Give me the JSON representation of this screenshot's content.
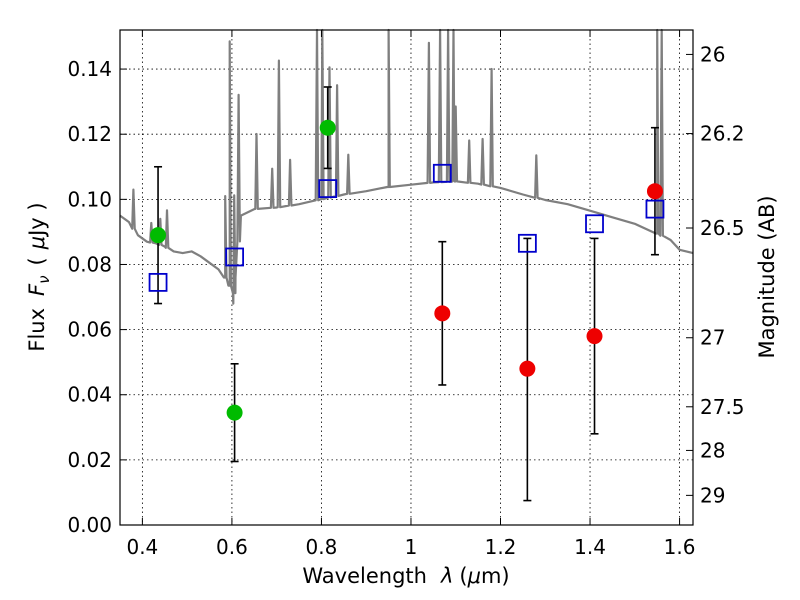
{
  "chart_data": {
    "type": "scatter",
    "xlabel_text": "Wavelength",
    "xlabel_symbol": "λ",
    "xlabel_unit_open": "(",
    "xlabel_unit_mu": "μ",
    "xlabel_unit_rest": "m)",
    "ylabel_text": "Flux",
    "ylabel_symbol": "F",
    "ylabel_sub": "ν",
    "ylabel_unit_open": "(",
    "ylabel_unit_mu": "μ",
    "ylabel_unit_rest": "Jy )",
    "ylabel_right": "Magnitude (AB)",
    "xlim": [
      0.35,
      1.63
    ],
    "ylim": [
      0.0,
      0.152
    ],
    "grid": true,
    "x_ticks": [
      {
        "value": 0.4,
        "label": "0.4"
      },
      {
        "value": 0.6,
        "label": "0.6"
      },
      {
        "value": 0.8,
        "label": "0.8"
      },
      {
        "value": 1.0,
        "label": "1"
      },
      {
        "value": 1.2,
        "label": "1.2"
      },
      {
        "value": 1.4,
        "label": "1.4"
      },
      {
        "value": 1.6,
        "label": "1.6"
      }
    ],
    "y_ticks": [
      {
        "value": 0.0,
        "label": "0.00"
      },
      {
        "value": 0.02,
        "label": "0.02"
      },
      {
        "value": 0.04,
        "label": "0.04"
      },
      {
        "value": 0.06,
        "label": "0.06"
      },
      {
        "value": 0.08,
        "label": "0.08"
      },
      {
        "value": 0.1,
        "label": "0.10"
      },
      {
        "value": 0.12,
        "label": "0.12"
      },
      {
        "value": 0.14,
        "label": "0.14"
      }
    ],
    "right_ticks": [
      {
        "flux": 0.1445,
        "label": "26"
      },
      {
        "flux": 0.1202,
        "label": "26.2"
      },
      {
        "flux": 0.0912,
        "label": "26.5"
      },
      {
        "flux": 0.0575,
        "label": "27"
      },
      {
        "flux": 0.0363,
        "label": "27.5"
      },
      {
        "flux": 0.0229,
        "label": "28"
      },
      {
        "flux": 0.0091,
        "label": "29"
      }
    ],
    "colors": {
      "green": "#00bb00",
      "red": "#ee0000",
      "model": "#7f7f7f",
      "square": "#0000cc",
      "errorbar": "#000000"
    },
    "series": [
      {
        "marker": "circle",
        "color": "green",
        "points": [
          {
            "x": 0.435,
            "y": 0.089,
            "lo": 0.068,
            "hi": 0.11
          },
          {
            "x": 0.606,
            "y": 0.0345,
            "lo": 0.0195,
            "hi": 0.0495
          },
          {
            "x": 0.814,
            "y": 0.122,
            "lo": 0.1095,
            "hi": 0.1345
          }
        ]
      },
      {
        "marker": "circle",
        "color": "red",
        "points": [
          {
            "x": 1.07,
            "y": 0.065,
            "lo": 0.043,
            "hi": 0.087
          },
          {
            "x": 1.26,
            "y": 0.048,
            "lo": 0.0075,
            "hi": 0.088
          },
          {
            "x": 1.41,
            "y": 0.058,
            "lo": 0.028,
            "hi": 0.088
          },
          {
            "x": 1.545,
            "y": 0.1025,
            "lo": 0.083,
            "hi": 0.122
          }
        ]
      },
      {
        "marker": "open-square",
        "color": "square",
        "points": [
          {
            "x": 0.435,
            "y": 0.0745
          },
          {
            "x": 0.606,
            "y": 0.0823
          },
          {
            "x": 0.814,
            "y": 0.1033
          },
          {
            "x": 1.07,
            "y": 0.108
          },
          {
            "x": 1.26,
            "y": 0.0865
          },
          {
            "x": 1.41,
            "y": 0.0925
          },
          {
            "x": 1.545,
            "y": 0.097
          }
        ]
      }
    ],
    "model_spectrum": {
      "color": "model",
      "continuum": [
        [
          0.35,
          0.095
        ],
        [
          0.37,
          0.093
        ],
        [
          0.39,
          0.089
        ],
        [
          0.41,
          0.087
        ],
        [
          0.43,
          0.0865
        ],
        [
          0.45,
          0.0855
        ],
        [
          0.47,
          0.084
        ],
        [
          0.49,
          0.0835
        ],
        [
          0.51,
          0.084
        ],
        [
          0.53,
          0.0825
        ],
        [
          0.55,
          0.0805
        ],
        [
          0.57,
          0.0785
        ],
        [
          0.585,
          0.076
        ],
        [
          0.595,
          0.0735
        ],
        [
          0.603,
          0.068
        ],
        [
          0.608,
          0.076
        ],
        [
          0.62,
          0.095
        ],
        [
          0.65,
          0.097
        ],
        [
          0.7,
          0.0975
        ],
        [
          0.75,
          0.0985
        ],
        [
          0.8,
          0.1
        ],
        [
          0.85,
          0.1015
        ],
        [
          0.9,
          0.1025
        ],
        [
          0.95,
          0.1038
        ],
        [
          1.0,
          0.1045
        ],
        [
          1.05,
          0.1052
        ],
        [
          1.1,
          0.1055
        ],
        [
          1.15,
          0.1048
        ],
        [
          1.2,
          0.1035
        ],
        [
          1.25,
          0.1015
        ],
        [
          1.3,
          0.0998
        ],
        [
          1.35,
          0.0985
        ],
        [
          1.4,
          0.0965
        ],
        [
          1.45,
          0.0945
        ],
        [
          1.5,
          0.0925
        ],
        [
          1.55,
          0.0895
        ],
        [
          1.58,
          0.0875
        ],
        [
          1.6,
          0.0845
        ],
        [
          1.63,
          0.0835
        ]
      ],
      "lines": [
        [
          0.38,
          0.012
        ],
        [
          0.42,
          0.006
        ],
        [
          0.44,
          0.008
        ],
        [
          0.455,
          0.0115
        ],
        [
          0.585,
          0.025
        ],
        [
          0.595,
          0.075
        ],
        [
          0.605,
          0.03
        ],
        [
          0.615,
          0.045
        ],
        [
          0.655,
          0.023
        ],
        [
          0.69,
          0.012
        ],
        [
          0.705,
          0.045
        ],
        [
          0.73,
          0.014
        ],
        [
          0.79,
          0.12
        ],
        [
          0.802,
          0.12
        ],
        [
          0.818,
          0.04
        ],
        [
          0.835,
          0.034
        ],
        [
          0.86,
          0.012
        ],
        [
          0.95,
          0.053
        ],
        [
          1.04,
          0.043
        ],
        [
          1.065,
          0.1
        ],
        [
          1.083,
          0.1
        ],
        [
          1.095,
          0.1
        ],
        [
          1.1,
          0.023
        ],
        [
          1.13,
          0.013
        ],
        [
          1.16,
          0.014
        ],
        [
          1.18,
          0.036
        ],
        [
          1.28,
          0.013
        ],
        [
          1.55,
          0.1
        ],
        [
          1.56,
          0.1
        ]
      ]
    }
  }
}
